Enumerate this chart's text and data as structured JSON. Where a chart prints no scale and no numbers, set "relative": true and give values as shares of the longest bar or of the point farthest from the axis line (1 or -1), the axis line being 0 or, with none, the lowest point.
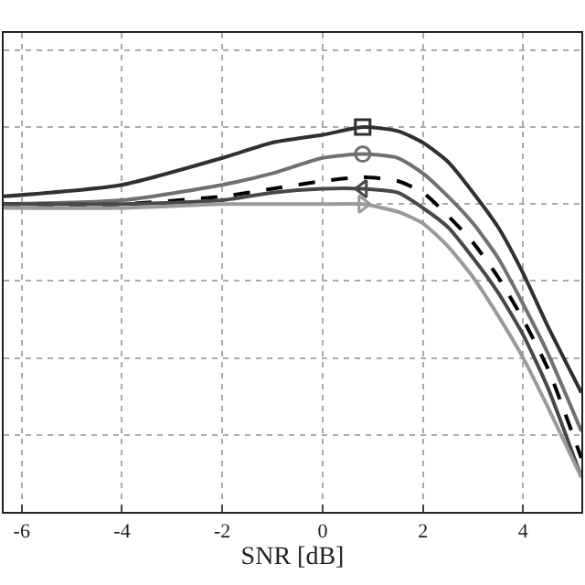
{
  "chart_data": {
    "type": "line",
    "relative": true,
    "xlabel": "SNR [dB]",
    "xlim": [
      -6.36,
      5.16
    ],
    "xticks": [
      -6,
      -4,
      -2,
      0,
      2,
      4
    ],
    "grid": true,
    "tick_labels": "x",
    "line_style": "solid",
    "marker": "none",
    "x": [
      -6.36,
      -4,
      -2,
      -1,
      0,
      0.8,
      1.5,
      2,
      2.5,
      3,
      3.5,
      4,
      4.5,
      5.16
    ],
    "series": [
      {
        "color": "#303030",
        "values": [
          0.82,
          0.85,
          0.92,
          0.96,
          0.98,
          1,
          0.99,
          0.96,
          0.91,
          0.83,
          0.74,
          0.62,
          0.48,
          0.31
        ]
      },
      {
        "color": "#707070",
        "values": [
          0.8,
          0.81,
          0.85,
          0.88,
          0.92,
          0.93,
          0.92,
          0.88,
          0.82,
          0.75,
          0.66,
          0.54,
          0.41,
          0.21
        ]
      },
      {
        "color": "#000000",
        "line_style": "dashed",
        "values": [
          0.8,
          0.8,
          0.82,
          0.84,
          0.86,
          0.87,
          0.86,
          0.83,
          0.77,
          0.7,
          0.61,
          0.5,
          0.37,
          0.14
        ]
      },
      {
        "color": "#484848",
        "values": [
          0.8,
          0.8,
          0.81,
          0.83,
          0.84,
          0.84,
          0.83,
          0.79,
          0.74,
          0.66,
          0.57,
          0.46,
          0.32,
          0.09
        ]
      },
      {
        "color": "#9a9a9a",
        "values": [
          0.79,
          0.79,
          0.8,
          0.8,
          0.8,
          0.8,
          0.78,
          0.75,
          0.69,
          0.61,
          0.51,
          0.4,
          0.27,
          0.09
        ]
      },
      {
        "type": "scatter",
        "marker": "square",
        "color": "#303030",
        "values": [
          null,
          null,
          null,
          null,
          null,
          1,
          null,
          null,
          null,
          null,
          null,
          null,
          null,
          null
        ]
      },
      {
        "type": "scatter",
        "marker": "circle",
        "color": "#707070",
        "values": [
          null,
          null,
          null,
          null,
          null,
          0.93,
          null,
          null,
          null,
          null,
          null,
          null,
          null,
          null
        ]
      },
      {
        "type": "scatter",
        "marker": "triangle-left",
        "color": "#484848",
        "values": [
          null,
          null,
          null,
          null,
          null,
          0.84,
          null,
          null,
          null,
          null,
          null,
          null,
          null,
          null
        ]
      },
      {
        "type": "scatter",
        "marker": "triangle-right",
        "color": "#9a9a9a",
        "values": [
          null,
          null,
          null,
          null,
          null,
          0.8,
          null,
          null,
          null,
          null,
          null,
          null,
          null,
          null
        ]
      }
    ]
  }
}
